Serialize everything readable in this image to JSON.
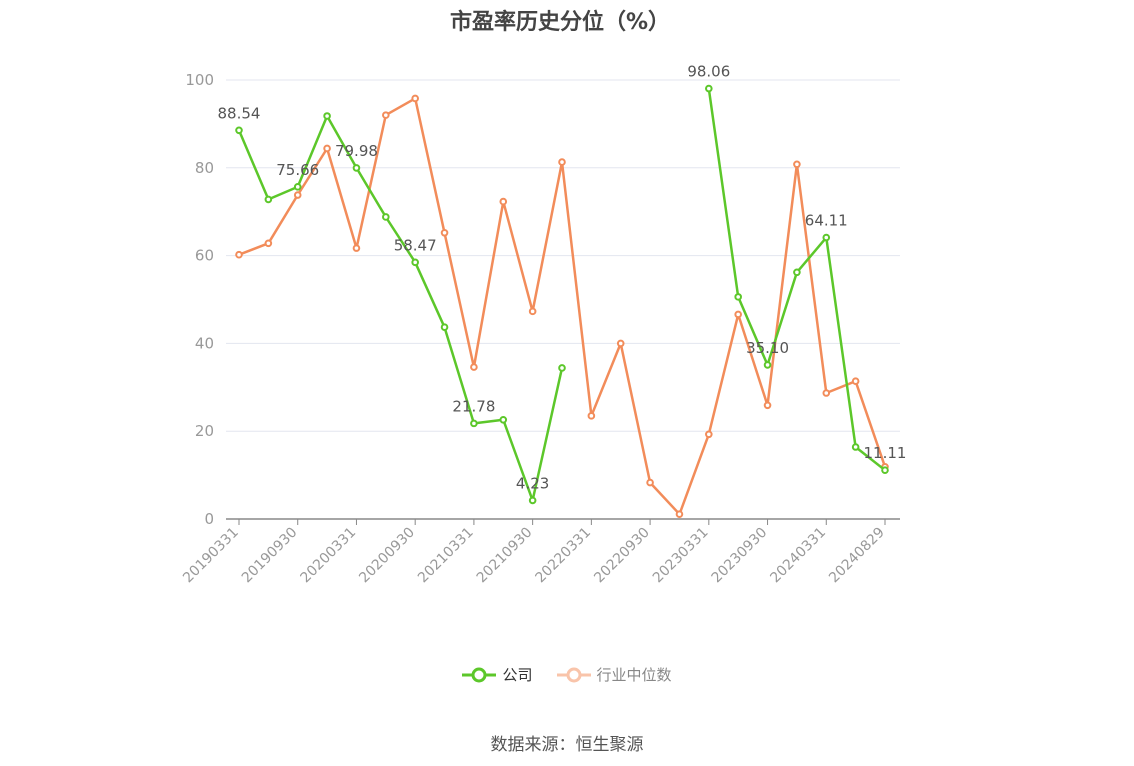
{
  "chart_data": {
    "type": "line",
    "title": "市盈率历史分位（%）",
    "xlabel": "",
    "ylabel": "",
    "ylim": [
      0,
      100
    ],
    "yticks": [
      0,
      20,
      40,
      60,
      80,
      100
    ],
    "grid": true,
    "legend_position": "bottom",
    "x_tick_labels": [
      "20190331",
      "20190930",
      "20200331",
      "20200930",
      "20210331",
      "20210930",
      "20220331",
      "20220930",
      "20230331",
      "20230930",
      "20240331",
      "20240829"
    ],
    "x": [
      "20190331",
      "20190630",
      "20190930",
      "20191231",
      "20200331",
      "20200630",
      "20200930",
      "20201231",
      "20210331",
      "20210630",
      "20210930",
      "20211231",
      "20220331",
      "20220630",
      "20220930",
      "20221231",
      "20230331",
      "20230630",
      "20230930",
      "20231231",
      "20240331",
      "20240630",
      "20240829"
    ],
    "series": [
      {
        "name": "公司",
        "color": "#5cc72a",
        "values": [
          88.54,
          72.8,
          75.66,
          91.8,
          79.98,
          68.8,
          58.47,
          43.7,
          21.78,
          22.6,
          4.23,
          34.4,
          null,
          null,
          null,
          null,
          98.06,
          50.6,
          35.1,
          56.2,
          64.11,
          16.4,
          11.11
        ],
        "labels": {
          "0": "88.54",
          "2": "75.66",
          "4": "79.98",
          "6": "58.47",
          "8": "21.78",
          "10": "4.23",
          "16": "98.06",
          "18": "35.10",
          "20": "64.11",
          "22": "11.11"
        }
      },
      {
        "name": "行业中位数",
        "color": "#f28c5a",
        "values": [
          60.2,
          62.8,
          73.8,
          84.4,
          61.7,
          92.0,
          95.8,
          65.2,
          34.6,
          72.3,
          47.3,
          81.3,
          23.5,
          40.0,
          8.3,
          1.1,
          19.3,
          46.6,
          25.9,
          80.8,
          28.7,
          31.4,
          11.9
        ]
      }
    ]
  },
  "source_text": "数据来源：恒生聚源"
}
